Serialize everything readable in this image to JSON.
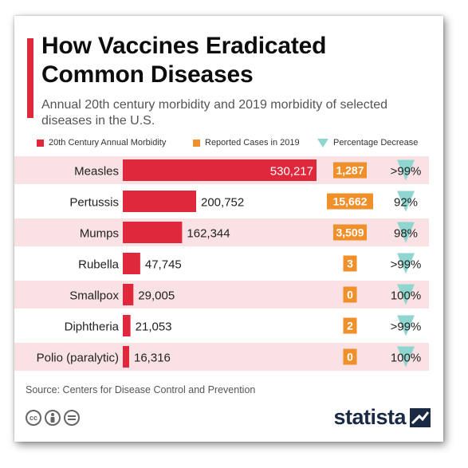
{
  "title": "How Vaccines Eradicated Common Diseases",
  "subtitle": "Annual 20th century morbidity and 2019 morbidity of selected diseases in the U.S.",
  "legend": {
    "morbidity": "20th Century Annual Morbidity",
    "reported": "Reported Cases in 2019",
    "decrease": "Percentage Decrease"
  },
  "colors": {
    "morbidity_bar": "#e0283c",
    "reported_badge": "#f0902a",
    "decrease_marker": "#8fd6d0",
    "row_band": "#f9e1e4",
    "title_accent": "#e0283c"
  },
  "chart_data": {
    "type": "bar",
    "categories": [
      "Measles",
      "Pertussis",
      "Mumps",
      "Rubella",
      "Smallpox",
      "Diphtheria",
      "Polio (paralytic)"
    ],
    "series": [
      {
        "name": "20th Century Annual Morbidity",
        "values": [
          530217,
          200752,
          162344,
          47745,
          29005,
          21053,
          16316
        ],
        "labels": [
          "530,217",
          "200,752",
          "162,344",
          "47,745",
          "29,005",
          "21,053",
          "16,316"
        ]
      },
      {
        "name": "Reported Cases in 2019",
        "values": [
          1287,
          15662,
          3509,
          3,
          0,
          2,
          0
        ],
        "labels": [
          "1,287",
          "15,662",
          "3,509",
          "3",
          "0",
          "2",
          "0"
        ]
      },
      {
        "name": "Percentage Decrease",
        "labels": [
          ">99%",
          "92%",
          "98%",
          ">99%",
          "100%",
          ">99%",
          "100%"
        ]
      }
    ]
  },
  "source": "Source: Centers for Disease Control and Prevention",
  "brand": "statista",
  "license_icons": [
    "creative-commons-icon",
    "attribution-icon",
    "no-derivatives-icon"
  ]
}
